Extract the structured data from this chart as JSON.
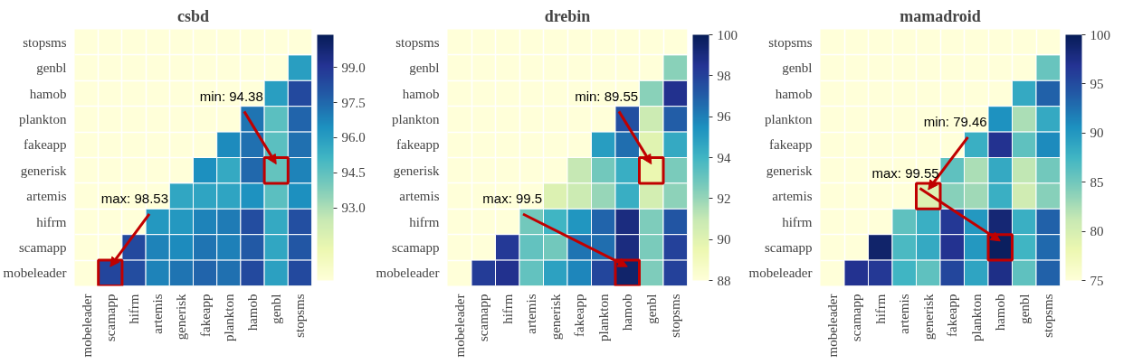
{
  "chart_data": [
    {
      "type": "heatmap",
      "title": "csbd",
      "grid": true,
      "categories": [
        "mobeleader",
        "scamapp",
        "hifrm",
        "artemis",
        "generisk",
        "fakeapp",
        "plankton",
        "hamob",
        "genbl",
        "stopsms"
      ],
      "y_categories": [
        "stopsms",
        "genbl",
        "hamob",
        "plankton",
        "fakeapp",
        "generisk",
        "artemis",
        "hifrm",
        "scamapp",
        "mobeleader"
      ],
      "cells": [
        [
          null,
          null,
          null,
          null,
          null,
          null,
          null,
          null,
          null,
          null
        ],
        [
          null,
          null,
          null,
          null,
          null,
          null,
          null,
          null,
          null,
          96.0
        ],
        [
          null,
          null,
          null,
          null,
          null,
          null,
          null,
          null,
          96.0,
          98.4
        ],
        [
          null,
          null,
          null,
          null,
          null,
          null,
          null,
          97.2,
          94.6,
          97.6
        ],
        [
          null,
          null,
          null,
          null,
          null,
          null,
          96.6,
          97.3,
          94.6,
          97.3
        ],
        [
          null,
          null,
          null,
          null,
          null,
          96.5,
          95.6,
          97.5,
          94.38,
          96.8
        ],
        [
          null,
          null,
          null,
          null,
          95.7,
          95.8,
          95.8,
          96.4,
          94.6,
          96.5
        ],
        [
          null,
          null,
          null,
          96.2,
          96.2,
          96.8,
          97.0,
          98.3,
          95.6,
          98.2
        ],
        [
          null,
          null,
          98.4,
          96.8,
          96.6,
          97.2,
          96.9,
          97.9,
          95.7,
          98.0
        ],
        [
          null,
          98.53,
          98.3,
          96.8,
          97.2,
          97.6,
          97.3,
          98.4,
          95.9,
          98.4
        ]
      ],
      "clim": [
        89.9,
        100.4
      ],
      "cticks": [
        {
          "value": 93,
          "label": "93.0"
        },
        {
          "value": 94.5,
          "label": "94.5"
        },
        {
          "value": 96,
          "label": "96.0"
        },
        {
          "value": 97.5,
          "label": "97.5"
        },
        {
          "value": 99,
          "label": "99.0"
        }
      ],
      "annotations": [
        {
          "text": "min: 94.38",
          "x": "genbl",
          "y": "generisk"
        },
        {
          "text": "max: 98.53",
          "x": "scamapp",
          "y": "mobeleader"
        }
      ]
    },
    {
      "type": "heatmap",
      "title": "drebin",
      "grid": true,
      "categories": [
        "mobeleader",
        "scamapp",
        "hifrm",
        "artemis",
        "generisk",
        "fakeapp",
        "plankton",
        "hamob",
        "genbl",
        "stopsms"
      ],
      "y_categories": [
        "stopsms",
        "genbl",
        "hamob",
        "plankton",
        "fakeapp",
        "generisk",
        "artemis",
        "hifrm",
        "scamapp",
        "mobeleader"
      ],
      "cells": [
        [
          null,
          null,
          null,
          null,
          null,
          null,
          null,
          null,
          null,
          null
        ],
        [
          null,
          null,
          null,
          null,
          null,
          null,
          null,
          null,
          null,
          92.3
        ],
        [
          null,
          null,
          null,
          null,
          null,
          null,
          null,
          null,
          92.3,
          98.6
        ],
        [
          null,
          null,
          null,
          null,
          null,
          null,
          null,
          97.5,
          90.8,
          97.0
        ],
        [
          null,
          null,
          null,
          null,
          null,
          null,
          95.0,
          96.5,
          90.0,
          94.5
        ],
        [
          null,
          null,
          null,
          null,
          null,
          91.0,
          92.8,
          94.3,
          89.55,
          92.6
        ],
        [
          null,
          null,
          null,
          null,
          90.2,
          90.8,
          92.0,
          94.3,
          90.5,
          92.2
        ],
        [
          null,
          null,
          null,
          92.8,
          94.0,
          95.3,
          96.8,
          99.0,
          92.5,
          97.3
        ],
        [
          null,
          null,
          98.3,
          93.2,
          92.8,
          96.3,
          96.5,
          99.0,
          92.6,
          98.0
        ],
        [
          null,
          98.2,
          98.6,
          93.2,
          94.8,
          95.8,
          97.8,
          99.5,
          92.5,
          98.0
        ]
      ],
      "clim": [
        88,
        100
      ],
      "cticks": [
        88,
        90,
        92,
        94,
        96,
        98,
        100
      ],
      "annotations": [
        {
          "text": "min: 89.55",
          "x": "genbl",
          "y": "generisk"
        },
        {
          "text": "max: 99.5",
          "x": "hamob",
          "y": "mobeleader"
        }
      ]
    },
    {
      "type": "heatmap",
      "title": "mamadroid",
      "grid": true,
      "categories": [
        "mobeleader",
        "scamapp",
        "hifrm",
        "artemis",
        "generisk",
        "fakeapp",
        "plankton",
        "hamob",
        "genbl",
        "stopsms"
      ],
      "y_categories": [
        "stopsms",
        "genbl",
        "hamob",
        "plankton",
        "fakeapp",
        "generisk",
        "artemis",
        "hifrm",
        "scamapp",
        "mobeleader"
      ],
      "cells": [
        [
          null,
          null,
          null,
          null,
          null,
          null,
          null,
          null,
          null,
          null
        ],
        [
          null,
          null,
          null,
          null,
          null,
          null,
          null,
          null,
          null,
          85.5
        ],
        [
          null,
          null,
          null,
          null,
          null,
          null,
          null,
          null,
          88.5,
          93.5
        ],
        [
          null,
          null,
          null,
          null,
          null,
          null,
          null,
          90.5,
          82.5,
          88.5
        ],
        [
          null,
          null,
          null,
          null,
          null,
          null,
          88.0,
          97.0,
          86.0,
          91.0
        ],
        [
          null,
          null,
          null,
          null,
          null,
          86.0,
          82.5,
          88.5,
          81.5,
          85.0
        ],
        [
          null,
          null,
          null,
          null,
          79.46,
          84.0,
          83.0,
          88.0,
          80.5,
          84.0
        ],
        [
          null,
          null,
          null,
          86.0,
          88.0,
          96.5,
          90.0,
          98.5,
          88.0,
          93.5
        ],
        [
          null,
          null,
          99.0,
          87.0,
          88.5,
          97.0,
          90.0,
          99.55,
          87.5,
          93.0
        ],
        [
          null,
          97.0,
          96.5,
          87.5,
          86.0,
          95.5,
          89.0,
          97.5,
          86.0,
          93.5
        ]
      ],
      "clim": [
        75,
        100
      ],
      "cticks": [
        75,
        80,
        85,
        90,
        95,
        100
      ],
      "annotations": [
        {
          "text": "min: 79.46",
          "x": "generisk",
          "y": "artemis"
        },
        {
          "text": "max: 99.55",
          "x": "hamob",
          "y": "scamapp"
        }
      ]
    }
  ]
}
